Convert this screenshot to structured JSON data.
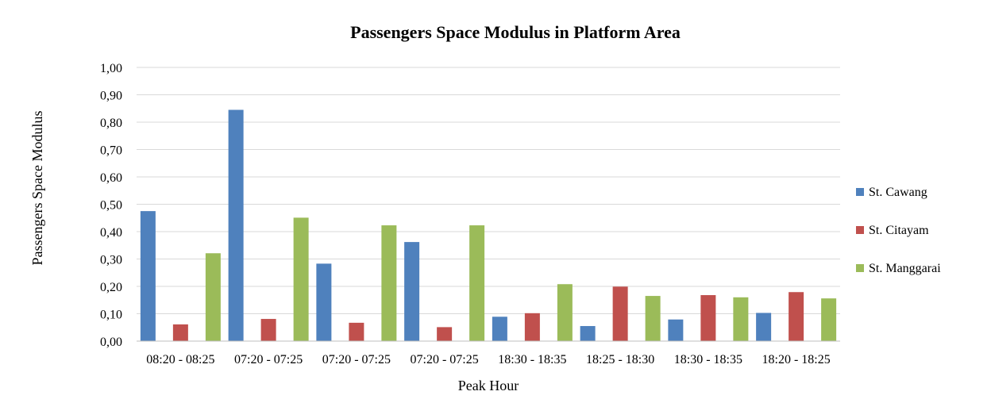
{
  "chart_data": {
    "type": "bar",
    "title": "Passengers Space Modulus in Platform Area",
    "xlabel": "Peak Hour",
    "ylabel": "Passengers Space Modulus",
    "ylim": [
      0,
      1
    ],
    "yticks": [
      "0,00",
      "0,10",
      "0,20",
      "0,30",
      "0,40",
      "0,50",
      "0,60",
      "0,70",
      "0,80",
      "0,90",
      "1,00"
    ],
    "categories": [
      "08:20 - 08:25",
      "07:20 - 07:25",
      "07:20 - 07:25",
      "07:20 - 07:25",
      "18:30 - 18:35",
      "18:25 - 18:30",
      "18:30 - 18:35",
      "18:20 - 18:25"
    ],
    "series": [
      {
        "name": "St. Cawang",
        "color": "#4f81bd",
        "values": [
          0.475,
          0.845,
          0.283,
          0.362,
          0.089,
          0.055,
          0.079,
          0.103
        ]
      },
      {
        "name": "St. Citayam",
        "color": "#c0504d",
        "values": [
          0.061,
          0.081,
          0.067,
          0.051,
          0.102,
          0.199,
          0.168,
          0.179
        ]
      },
      {
        "name": "St. Manggarai",
        "color": "#9bbb59",
        "values": [
          0.321,
          0.451,
          0.423,
          0.423,
          0.208,
          0.165,
          0.16,
          0.156
        ]
      }
    ],
    "grid": true,
    "legend": "right"
  }
}
